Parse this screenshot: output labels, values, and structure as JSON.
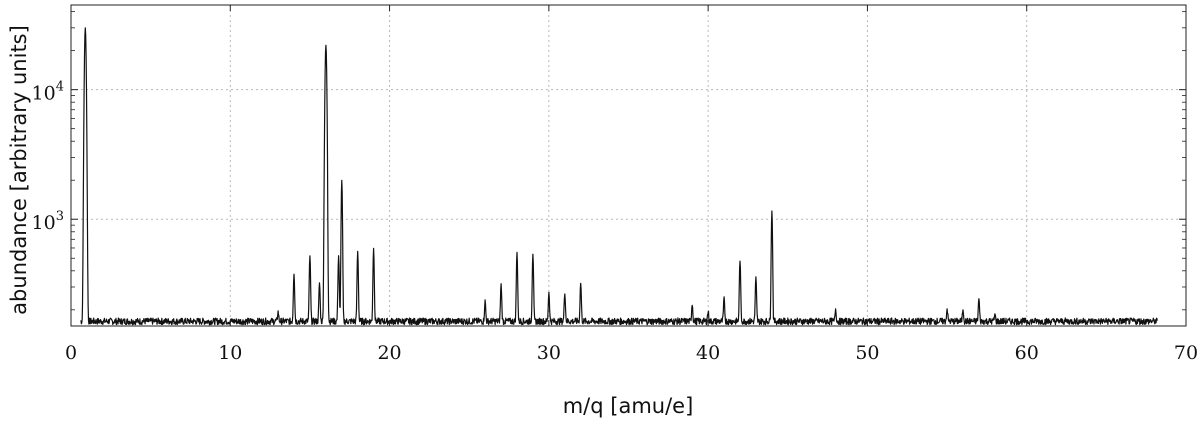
{
  "chart_data": {
    "type": "line",
    "title": "",
    "xlabel": "m/q [amu/e]",
    "ylabel": "abundance [arbitrary units]",
    "xlim": [
      0,
      70
    ],
    "ylim": [
      150,
      45000
    ],
    "yscale": "log",
    "grid": true,
    "line_color": "#111111",
    "x_ticks": [
      0,
      10,
      20,
      30,
      40,
      50,
      60,
      70
    ],
    "x_tick_labels": [
      "0",
      "10",
      "20",
      "30",
      "40",
      "50",
      "60",
      "70"
    ],
    "y_ticks": [
      {
        "value": 10000,
        "base": "10",
        "exp": "4"
      },
      {
        "value": 1000,
        "base": "10",
        "exp": "3"
      }
    ],
    "baseline": 160,
    "series": [
      {
        "peaks": [
          {
            "x": 0.9,
            "y": 30000
          },
          {
            "x": 13.0,
            "y": 190
          },
          {
            "x": 14.0,
            "y": 380
          },
          {
            "x": 15.0,
            "y": 520
          },
          {
            "x": 15.6,
            "y": 320
          },
          {
            "x": 16.0,
            "y": 22000
          },
          {
            "x": 16.8,
            "y": 520
          },
          {
            "x": 17.0,
            "y": 2000
          },
          {
            "x": 18.0,
            "y": 560
          },
          {
            "x": 19.0,
            "y": 590
          },
          {
            "x": 26.0,
            "y": 230
          },
          {
            "x": 27.0,
            "y": 310
          },
          {
            "x": 28.0,
            "y": 550
          },
          {
            "x": 29.0,
            "y": 540
          },
          {
            "x": 30.0,
            "y": 270
          },
          {
            "x": 31.0,
            "y": 270
          },
          {
            "x": 32.0,
            "y": 320
          },
          {
            "x": 39.0,
            "y": 220
          },
          {
            "x": 40.0,
            "y": 190
          },
          {
            "x": 41.0,
            "y": 240
          },
          {
            "x": 42.0,
            "y": 480
          },
          {
            "x": 43.0,
            "y": 350
          },
          {
            "x": 44.0,
            "y": 1150
          },
          {
            "x": 48.0,
            "y": 200
          },
          {
            "x": 55.0,
            "y": 200
          },
          {
            "x": 56.0,
            "y": 200
          },
          {
            "x": 57.0,
            "y": 240
          },
          {
            "x": 58.0,
            "y": 180
          }
        ]
      }
    ]
  }
}
